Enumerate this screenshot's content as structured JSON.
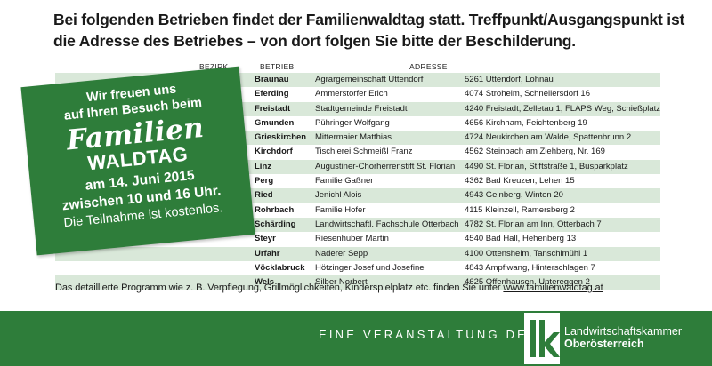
{
  "headline": {
    "line1": "Bei folgenden Betrieben findet der Familienwaldtag statt. Treffpunkt/Ausgangspunkt ist",
    "line2": "die Adresse des Betriebes – von dort folgen Sie bitte der Beschilderung."
  },
  "table": {
    "headers": [
      "BEZIRK",
      "BETRIEB",
      "ADRESSE"
    ],
    "rows": [
      {
        "bezirk": "Braunau",
        "betrieb": "Agrargemeinschaft Uttendorf",
        "adresse": "5261 Uttendorf, Lohnau"
      },
      {
        "bezirk": "Eferding",
        "betrieb": "Ammerstorfer Erich",
        "adresse": "4074 Stroheim, Schnellersdorf 16"
      },
      {
        "bezirk": "Freistadt",
        "betrieb": "Stadtgemeinde Freistadt",
        "adresse": "4240 Freistadt, Zelletau 1, FLAPS Weg, Schießplatz"
      },
      {
        "bezirk": "Gmunden",
        "betrieb": "Pühringer Wolfgang",
        "adresse": "4656 Kirchham, Feichtenberg 19"
      },
      {
        "bezirk": "Grieskirchen",
        "betrieb": "Mittermaier Matthias",
        "adresse": "4724 Neukirchen am Walde, Spattenbrunn 2"
      },
      {
        "bezirk": "Kirchdorf",
        "betrieb": "Tischlerei Schmeißl Franz",
        "adresse": "4562 Steinbach am Ziehberg, Nr. 169"
      },
      {
        "bezirk": "Linz",
        "betrieb": "Augustiner-Chorherrenstift St. Florian",
        "adresse": "4490 St. Florian, Stiftstraße 1, Busparkplatz"
      },
      {
        "bezirk": "Perg",
        "betrieb": "Familie Gaßner",
        "adresse": "4362 Bad Kreuzen, Lehen 15"
      },
      {
        "bezirk": "Ried",
        "betrieb": "Jenichl Alois",
        "adresse": "4943 Geinberg, Winten 20"
      },
      {
        "bezirk": "Rohrbach",
        "betrieb": "Familie Hofer",
        "adresse": "4115 Kleinzell, Ramersberg 2"
      },
      {
        "bezirk": "Schärding",
        "betrieb": "Landwirtschaftl. Fachschule Otterbach",
        "adresse": "4782 St. Florian am Inn, Otterbach 7"
      },
      {
        "bezirk": "Steyr",
        "betrieb": "Riesenhuber Martin",
        "adresse": "4540 Bad Hall, Hehenberg 13"
      },
      {
        "bezirk": "Urfahr",
        "betrieb": "Naderer Sepp",
        "adresse": "4100 Ottensheim, Tanschlmühl 1"
      },
      {
        "bezirk": "Vöcklabruck",
        "betrieb": "Hötzinger Josef und Josefine",
        "adresse": "4843 Ampflwang, Hinterschlagen 7"
      },
      {
        "bezirk": "Wels",
        "betrieb": "Silber Norbert",
        "adresse": "4625 Offenhausen, Untereggen 2"
      }
    ]
  },
  "promo": {
    "line1": "Wir freuen uns",
    "line2": "auf Ihren Besuch beim",
    "line3": "Familien",
    "line4": "WALDTAG",
    "line5": "am 14. Juni 2015",
    "line6": "zwischen 10 und 16 Uhr.",
    "line7": "Die Teilnahme ist kostenlos."
  },
  "footnote": {
    "text": "Das detaillierte Programm wie z. B. Verpflegung, Grillmöglichkeiten, Kinderspielplatz etc. finden Sie unter ",
    "link": "www.familienwaldtag.at"
  },
  "footer": {
    "tagline": "EINE VERANSTALTUNG DER",
    "org_line1": "Landwirtschaftskammer",
    "org_line2": "Oberösterreich"
  },
  "colors": {
    "brand_green": "#2e7d3a",
    "row_tint": "#d9e8d9"
  }
}
